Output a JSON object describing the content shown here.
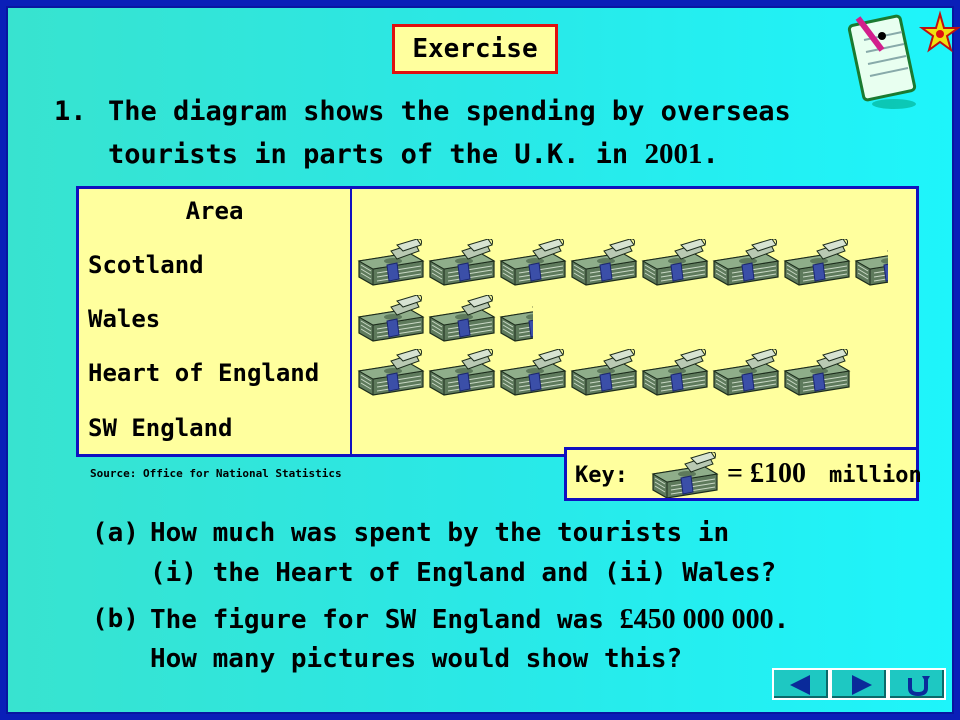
{
  "title": "Exercise",
  "question": {
    "number": "1.",
    "line1": "The diagram shows the spending by overseas",
    "line2_pre": "tourists in parts of the U.K. in ",
    "line2_year": "2001",
    "line2_post": "."
  },
  "chart_data": {
    "type": "pictogram",
    "column_header": "Area",
    "categories": [
      "Scotland",
      "Wales",
      "Heart of England",
      "SW England"
    ],
    "icons": [
      7.5,
      2.5,
      7,
      0
    ],
    "icon_value_millions": 100,
    "icon_name": "banknote-bundle-icon"
  },
  "source": "Source: Office for National Statistics",
  "key": {
    "label": "Key:",
    "equals": "= £100",
    "unit": "million"
  },
  "parts": {
    "a": {
      "label": "(a)",
      "line1": "How much was spent by the tourists in",
      "line2": "(i) the Heart of England and (ii) Wales?"
    },
    "b": {
      "label": "(b)",
      "line1_pre": "The figure for SW England was ",
      "line1_amount": "£450 000 000",
      "line1_post": ".",
      "line2": "How many pictures would show this?"
    }
  },
  "nav": [
    "back-arrow-icon",
    "forward-arrow-icon",
    "return-icon"
  ],
  "colors": {
    "panel": "#ffff9e",
    "frame": "#0a1fb8",
    "title_border": "#e01010",
    "panel_border": "#1010c0"
  }
}
